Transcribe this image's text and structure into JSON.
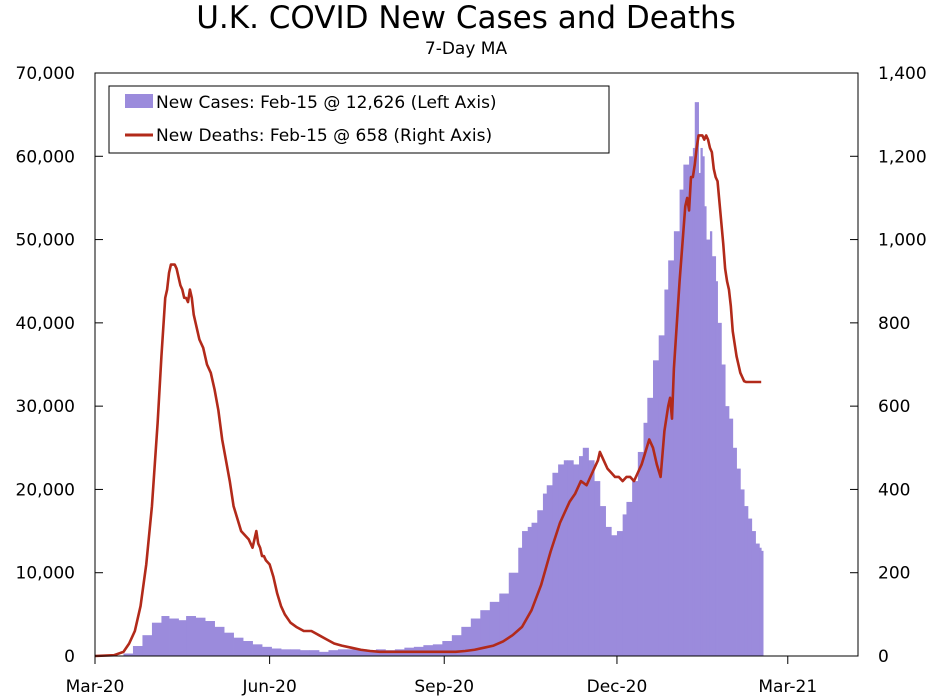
{
  "chart_data": {
    "type": "bar+line",
    "title": "U.K. COVID New Cases and Deaths",
    "subtitle": "7-Day MA",
    "xlabel": "",
    "ylabel_left": "",
    "ylabel_right": "",
    "x_ticks": [
      "Mar-20",
      "Jun-20",
      "Sep-20",
      "Dec-20",
      "Mar-21"
    ],
    "x_tick_days": [
      0,
      92,
      184,
      275,
      365
    ],
    "left_axis": {
      "ylim": [
        0,
        70000
      ],
      "ticks": [
        "0",
        "10,000",
        "20,000",
        "30,000",
        "40,000",
        "50,000",
        "60,000",
        "70,000"
      ]
    },
    "right_axis": {
      "ylim": [
        0,
        1400
      ],
      "ticks": [
        "0",
        "200",
        "400",
        "600",
        "800",
        "1,000",
        "1,200",
        "1,400"
      ]
    },
    "legend": {
      "position": "top-left",
      "items": [
        {
          "label": "New Cases: Feb-15 @ 12,626 (Left Axis)",
          "color": "#9b8bdc",
          "kind": "bar"
        },
        {
          "label": "New Deaths: Feb-15 @ 658 (Right Axis)",
          "color": "#b22a1a",
          "kind": "line"
        }
      ]
    },
    "colors": {
      "cases": "#9b8bdc",
      "deaths": "#b22a1a"
    },
    "series": [
      {
        "name": "New Cases (7-day MA)",
        "axis": "left",
        "kind": "bar",
        "x_day": [
          0,
          15,
          20,
          25,
          30,
          35,
          39,
          44,
          48,
          53,
          58,
          63,
          68,
          73,
          78,
          83,
          88,
          93,
          98,
          103,
          108,
          113,
          118,
          123,
          128,
          133,
          138,
          143,
          148,
          153,
          158,
          163,
          168,
          173,
          178,
          183,
          188,
          193,
          198,
          203,
          208,
          213,
          218,
          223,
          225,
          228,
          230,
          233,
          236,
          238,
          241,
          244,
          247,
          249,
          252,
          255,
          257,
          260,
          263,
          266,
          269,
          272,
          275,
          278,
          280,
          283,
          286,
          289,
          291,
          294,
          297,
          300,
          302,
          305,
          308,
          310,
          313,
          315,
          316,
          318,
          319,
          320,
          321,
          322,
          324,
          325,
          327,
          328,
          330,
          332,
          334,
          336,
          338,
          340,
          342,
          344,
          346,
          348,
          350,
          351
        ],
        "values": [
          0,
          300,
          1200,
          2500,
          4000,
          4800,
          4500,
          4300,
          4800,
          4600,
          4200,
          3500,
          2800,
          2200,
          1800,
          1400,
          1100,
          900,
          800,
          800,
          700,
          700,
          500,
          700,
          800,
          800,
          800,
          700,
          800,
          700,
          800,
          1000,
          1100,
          1300,
          1400,
          1800,
          2500,
          3500,
          4500,
          5500,
          6500,
          7500,
          10000,
          13000,
          15000,
          15500,
          16000,
          17500,
          19500,
          20500,
          22000,
          23000,
          23500,
          23500,
          23000,
          24000,
          25000,
          23500,
          21000,
          18000,
          15500,
          14500,
          15000,
          17000,
          18500,
          21000,
          24500,
          28000,
          31000,
          35500,
          38500,
          44000,
          47500,
          51000,
          56000,
          59000,
          60000,
          61000,
          66500,
          58000,
          61000,
          60000,
          54000,
          50000,
          51000,
          48000,
          45000,
          40000,
          35000,
          30000,
          28500,
          25000,
          22500,
          20000,
          18000,
          16500,
          15000,
          13500,
          13000,
          12626
        ]
      },
      {
        "name": "New Deaths (7-day MA)",
        "axis": "right",
        "kind": "line",
        "x_day": [
          0,
          10,
          15,
          18,
          21,
          24,
          27,
          30,
          33,
          35,
          37,
          38,
          39,
          40,
          41,
          42,
          43,
          44,
          45,
          46,
          47,
          48,
          49,
          50,
          51,
          52,
          53,
          54,
          55,
          57,
          59,
          61,
          63,
          65,
          67,
          69,
          71,
          73,
          75,
          77,
          79,
          81,
          83,
          84,
          85,
          86,
          87,
          88,
          89,
          90,
          92,
          94,
          96,
          98,
          100,
          103,
          106,
          110,
          114,
          118,
          122,
          126,
          130,
          135,
          140,
          145,
          150,
          155,
          160,
          165,
          170,
          175,
          180,
          185,
          190,
          195,
          200,
          205,
          210,
          215,
          220,
          225,
          230,
          235,
          240,
          245,
          250,
          253,
          256,
          259,
          262,
          264,
          265,
          266,
          268,
          270,
          272,
          274,
          276,
          278,
          280,
          282,
          284,
          286,
          288,
          290,
          292,
          294,
          296,
          298,
          300,
          302,
          303,
          304,
          305,
          307,
          308,
          309,
          310,
          311,
          312,
          313,
          314,
          315,
          316,
          317,
          318,
          319,
          320,
          321,
          322,
          323,
          324,
          325,
          326,
          327,
          328,
          329,
          330,
          331,
          332,
          333,
          334,
          335,
          336,
          337,
          338,
          339,
          340,
          341,
          342,
          343,
          344,
          345,
          346,
          347,
          348,
          349,
          350,
          351
        ],
        "values": [
          0,
          2,
          10,
          30,
          60,
          120,
          220,
          360,
          560,
          720,
          860,
          880,
          920,
          940,
          940,
          940,
          930,
          910,
          890,
          880,
          860,
          860,
          850,
          880,
          860,
          820,
          800,
          780,
          760,
          740,
          700,
          680,
          640,
          590,
          520,
          470,
          420,
          360,
          330,
          300,
          290,
          280,
          260,
          280,
          300,
          270,
          260,
          240,
          240,
          230,
          220,
          190,
          150,
          120,
          100,
          80,
          70,
          60,
          60,
          50,
          40,
          30,
          25,
          20,
          15,
          12,
          10,
          10,
          10,
          10,
          10,
          10,
          10,
          10,
          10,
          12,
          15,
          20,
          25,
          35,
          50,
          70,
          110,
          170,
          250,
          320,
          370,
          390,
          420,
          410,
          440,
          460,
          470,
          490,
          470,
          450,
          440,
          430,
          430,
          420,
          430,
          430,
          420,
          440,
          460,
          490,
          520,
          500,
          460,
          430,
          540,
          600,
          620,
          570,
          690,
          830,
          900,
          960,
          1020,
          1080,
          1100,
          1070,
          1150,
          1150,
          1180,
          1220,
          1250,
          1250,
          1250,
          1240,
          1250,
          1240,
          1220,
          1210,
          1170,
          1150,
          1140,
          1090,
          1040,
          990,
          930,
          900,
          880,
          840,
          780,
          750,
          720,
          700,
          680,
          670,
          660,
          658,
          658,
          658,
          658,
          658,
          658,
          658,
          658,
          658
        ]
      }
    ]
  }
}
